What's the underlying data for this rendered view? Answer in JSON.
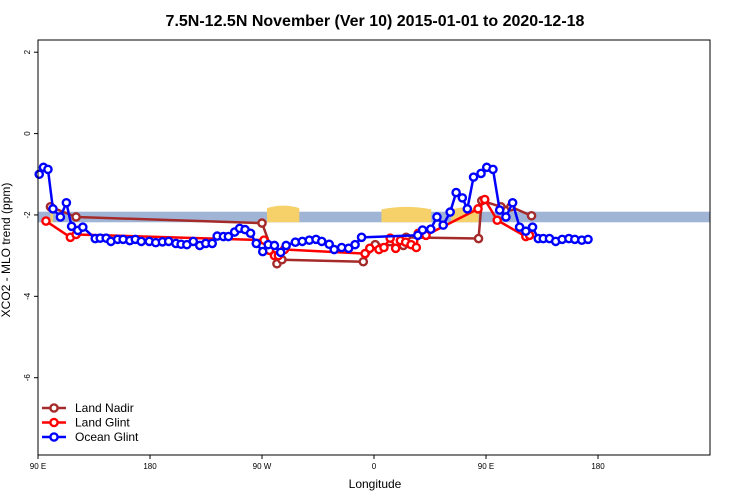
{
  "chart_data": {
    "type": "line",
    "title": "7.5N-12.5N November (Ver 10)   2015-01-01 to 2020-12-18",
    "xlabel": "Longitude",
    "ylabel": "XCO2 - MLO trend (ppm)",
    "xlim": [
      -90,
      180
    ],
    "ylim": [
      -7.9,
      2.3
    ],
    "x_ticks": [
      {
        "value": -90,
        "label": "90 E"
      },
      {
        "value": -45,
        "label": "180"
      },
      {
        "value": 0,
        "label": "90 W"
      },
      {
        "value": 45,
        "label": "0"
      },
      {
        "value": 90,
        "label": "90 E"
      },
      {
        "value": 135,
        "label": "180"
      }
    ],
    "y_ticks": [
      {
        "value": 2,
        "label": "2"
      },
      {
        "value": 0,
        "label": "0"
      },
      {
        "value": -2,
        "label": "-2"
      },
      {
        "value": -4,
        "label": "-4"
      },
      {
        "value": -6,
        "label": "-6"
      }
    ],
    "reference_band": {
      "y_center": -2.05,
      "half_height": 0.13,
      "color": "#a0b4d6"
    },
    "land_fill": {
      "color": "#f6d16a",
      "regions": [
        {
          "x0": -85,
          "x1": -84,
          "height": 0.1
        },
        {
          "x0": 2,
          "x1": 15,
          "height": 0.16
        },
        {
          "x0": 48,
          "x1": 68,
          "height": 0.13
        },
        {
          "x0": 76,
          "x1": 87,
          "height": 0.12
        }
      ]
    },
    "legend": {
      "position": "bottom-left"
    },
    "series": [
      {
        "name": "Land Nadir",
        "color": "#a52a2a",
        "points": [
          [
            -85,
            -1.8
          ],
          [
            -74.7,
            -2.05
          ],
          [
            0,
            -2.2
          ],
          [
            6,
            -3.2
          ],
          [
            8,
            -3.1
          ],
          [
            40.7,
            -3.15
          ],
          [
            45.5,
            -2.73
          ],
          [
            56.8,
            -2.75
          ],
          [
            57.9,
            -2.55
          ],
          [
            87,
            -2.58
          ],
          [
            88.3,
            -1.65
          ],
          [
            96,
            -1.8
          ],
          [
            100,
            -1.8
          ],
          [
            108.3,
            -2.02
          ]
        ]
      },
      {
        "name": "Land Glint",
        "color": "#ff0000",
        "points": [
          [
            -86.8,
            -2.15
          ],
          [
            -77,
            -2.55
          ],
          [
            -74.7,
            -2.48
          ],
          [
            0.8,
            -2.62
          ],
          [
            3,
            -2.87
          ],
          [
            5,
            -3.0
          ],
          [
            6.6,
            -3.0
          ],
          [
            9,
            -2.85
          ],
          [
            41.4,
            -2.95
          ],
          [
            43.3,
            -2.82
          ],
          [
            47,
            -2.85
          ],
          [
            49,
            -2.8
          ],
          [
            51.5,
            -2.57
          ],
          [
            53.7,
            -2.82
          ],
          [
            55.6,
            -2.63
          ],
          [
            57.7,
            -2.67
          ],
          [
            59.9,
            -2.73
          ],
          [
            62,
            -2.8
          ],
          [
            62.8,
            -2.45
          ],
          [
            65.9,
            -2.5
          ],
          [
            86.8,
            -1.85
          ],
          [
            89.5,
            -1.62
          ],
          [
            94.5,
            -2.13
          ],
          [
            106,
            -2.53
          ],
          [
            107.5,
            -2.5
          ]
        ]
      },
      {
        "name": "Ocean Glint",
        "color": "#0000ff",
        "points": [
          [
            -89.5,
            -1.0
          ],
          [
            -87.8,
            -0.83
          ],
          [
            -86,
            -0.88
          ],
          [
            -84,
            -1.85
          ],
          [
            -81,
            -2.05
          ],
          [
            -78.6,
            -1.7
          ],
          [
            -76.5,
            -2.28
          ],
          [
            -74,
            -2.38
          ],
          [
            -72,
            -2.3
          ],
          [
            -67,
            -2.58
          ],
          [
            -65,
            -2.57
          ],
          [
            -62.6,
            -2.57
          ],
          [
            -60.7,
            -2.65
          ],
          [
            -58,
            -2.6
          ],
          [
            -55.8,
            -2.6
          ],
          [
            -53.1,
            -2.63
          ],
          [
            -50.9,
            -2.6
          ],
          [
            -48.5,
            -2.65
          ],
          [
            -45.3,
            -2.65
          ],
          [
            -42.7,
            -2.68
          ],
          [
            -40,
            -2.66
          ],
          [
            -37.5,
            -2.65
          ],
          [
            -34.6,
            -2.7
          ],
          [
            -32.5,
            -2.72
          ],
          [
            -30.2,
            -2.73
          ],
          [
            -27.6,
            -2.65
          ],
          [
            -25,
            -2.75
          ],
          [
            -22.6,
            -2.7
          ],
          [
            -20,
            -2.7
          ],
          [
            -18,
            -2.52
          ],
          [
            -15.5,
            -2.53
          ],
          [
            -13.5,
            -2.53
          ],
          [
            -11,
            -2.42
          ],
          [
            -9,
            -2.33
          ],
          [
            -6.8,
            -2.36
          ],
          [
            -4.6,
            -2.45
          ],
          [
            -2.3,
            -2.7
          ],
          [
            0.3,
            -2.9
          ],
          [
            2.5,
            -2.73
          ],
          [
            5,
            -2.75
          ],
          [
            7.5,
            -2.92
          ],
          [
            9.7,
            -2.75
          ],
          [
            13.4,
            -2.67
          ],
          [
            16.2,
            -2.65
          ],
          [
            19,
            -2.62
          ],
          [
            21.7,
            -2.6
          ],
          [
            24,
            -2.65
          ],
          [
            27,
            -2.72
          ],
          [
            29,
            -2.85
          ],
          [
            32,
            -2.8
          ],
          [
            34.8,
            -2.82
          ],
          [
            37.4,
            -2.73
          ],
          [
            40,
            -2.55
          ],
          [
            62.6,
            -2.5
          ],
          [
            64.5,
            -2.37
          ],
          [
            67.8,
            -2.35
          ],
          [
            70.3,
            -2.05
          ],
          [
            72.8,
            -2.25
          ],
          [
            75.6,
            -1.93
          ],
          [
            78,
            -1.45
          ],
          [
            80.5,
            -1.58
          ],
          [
            82.5,
            -1.85
          ],
          [
            85,
            -1.07
          ],
          [
            88,
            -0.98
          ],
          [
            90.3,
            -0.83
          ],
          [
            92.8,
            -0.88
          ],
          [
            95.5,
            -1.88
          ],
          [
            98,
            -2.05
          ],
          [
            100.7,
            -1.7
          ],
          [
            103.5,
            -2.3
          ],
          [
            106,
            -2.4
          ],
          [
            108.7,
            -2.3
          ],
          [
            111,
            -2.58
          ],
          [
            113,
            -2.58
          ],
          [
            115.5,
            -2.58
          ],
          [
            118,
            -2.65
          ],
          [
            120.6,
            -2.6
          ],
          [
            123.3,
            -2.58
          ],
          [
            125.7,
            -2.6
          ],
          [
            128.5,
            -2.62
          ],
          [
            131,
            -2.6
          ]
        ]
      }
    ]
  }
}
